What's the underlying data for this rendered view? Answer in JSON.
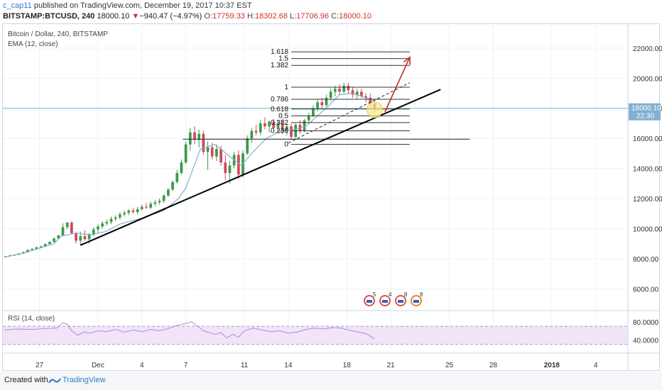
{
  "header": {
    "user": "c_cap11",
    "published_text": "published on TradingView.com, December 19, 2017 10:37 EST",
    "symbol": "BITSTAMP:BTCUSD, 240",
    "last": "18000.10",
    "change_arrow": "▼",
    "change": "−940.47 (−4.97%)",
    "o_label": "O:",
    "o_value": "17759.33",
    "h_label": "H:",
    "h_value": "18302.68",
    "l_label": "L:",
    "l_value": "17706.96",
    "c_label": "C:",
    "c_value": "18000.10"
  },
  "legend": {
    "title": "Bitcoin / Dollar, 240, BITSTAMP",
    "ema": "EMA (12, close)",
    "rsi": "RSI (14, close)"
  },
  "footer": {
    "created": "Created with",
    "brand": "TradingView"
  },
  "colors": {
    "up": "#3c9a48",
    "down": "#d0485c",
    "ema": "#7fb2cf",
    "trend": "#000000",
    "arrow": "#c62828",
    "rsi_line": "#b08acb",
    "rsi_band": "#f1e4f9",
    "price_marker": "#7fb2cf",
    "highlight": "#f7e98a"
  },
  "chart_data": {
    "type": "candlestick",
    "price_axis": {
      "ticks": [
        6000,
        8000,
        10000,
        12000,
        14000,
        16000,
        18000,
        20000,
        22000
      ],
      "tick_labels": [
        "6000.00",
        "8000.00",
        "10000.00",
        "12000.00",
        "14000.00",
        "16000.00",
        "18000.00",
        "20000.00",
        "22000.00"
      ],
      "range": [
        4650,
        23500
      ]
    },
    "time_axis": {
      "labels": [
        "27",
        "Dec",
        "4",
        "7",
        "11",
        "14",
        "18",
        "21",
        "25",
        "28",
        "2018",
        "4"
      ],
      "label_days": [
        -4,
        0,
        3,
        6,
        10,
        13,
        17,
        20,
        24,
        27,
        31,
        34
      ],
      "range_days": [
        -6.5,
        36.2
      ]
    },
    "last_price": {
      "value": "18000.10",
      "countdown": "22:30"
    },
    "ema": {
      "name": "EMA (12, close)",
      "points": [
        [
          -6.4,
          8100
        ],
        [
          -5,
          8400
        ],
        [
          -3,
          9000
        ],
        [
          -2.5,
          9500
        ],
        [
          -1.5,
          9700
        ],
        [
          -0.5,
          9600
        ],
        [
          0.5,
          9800
        ],
        [
          1.5,
          10300
        ],
        [
          3,
          10700
        ],
        [
          4.5,
          11200
        ],
        [
          5.5,
          12000
        ],
        [
          6,
          12700
        ],
        [
          6.5,
          14000
        ],
        [
          7,
          15300
        ],
        [
          8,
          15600
        ],
        [
          9,
          14800
        ],
        [
          9.8,
          14200
        ],
        [
          10.5,
          15000
        ],
        [
          11.5,
          16000
        ],
        [
          12.5,
          16500
        ],
        [
          13.4,
          16600
        ],
        [
          14.2,
          16800
        ],
        [
          15,
          17500
        ],
        [
          15.8,
          18200
        ],
        [
          16.5,
          18900
        ],
        [
          17.3,
          19000
        ],
        [
          18,
          18800
        ],
        [
          18.8,
          18500
        ]
      ]
    },
    "candles": [
      [
        -6.3,
        8140,
        8190,
        8110,
        8170
      ],
      [
        -6.0,
        8170,
        8260,
        8150,
        8230
      ],
      [
        -5.7,
        8230,
        8300,
        8190,
        8270
      ],
      [
        -5.4,
        8270,
        8380,
        8240,
        8350
      ],
      [
        -5.1,
        8350,
        8490,
        8320,
        8440
      ],
      [
        -4.8,
        8440,
        8620,
        8400,
        8580
      ],
      [
        -4.5,
        8580,
        8700,
        8520,
        8650
      ],
      [
        -4.2,
        8650,
        8820,
        8600,
        8760
      ],
      [
        -3.9,
        8760,
        8880,
        8700,
        8820
      ],
      [
        -3.6,
        8820,
        9020,
        8780,
        8980
      ],
      [
        -3.3,
        8980,
        9180,
        8920,
        9120
      ],
      [
        -3.0,
        9120,
        9400,
        9080,
        9350
      ],
      [
        -2.7,
        9350,
        9600,
        9300,
        9550
      ],
      [
        -2.4,
        9550,
        10350,
        9500,
        10100
      ],
      [
        -2.1,
        10100,
        10450,
        9950,
        10400
      ],
      [
        -1.8,
        10400,
        10500,
        9600,
        9700
      ],
      [
        -1.5,
        9700,
        9800,
        9000,
        9200
      ],
      [
        -1.2,
        9200,
        9800,
        8900,
        9500
      ],
      [
        -0.9,
        9500,
        9900,
        9200,
        9300
      ],
      [
        -0.6,
        9300,
        9700,
        9000,
        9600
      ],
      [
        -0.3,
        9600,
        10100,
        9500,
        9950
      ],
      [
        0.0,
        9950,
        10300,
        9700,
        10150
      ],
      [
        0.3,
        10150,
        10500,
        10000,
        10350
      ],
      [
        0.6,
        10350,
        10600,
        10200,
        10450
      ],
      [
        0.9,
        10450,
        10800,
        10300,
        10650
      ],
      [
        1.2,
        10650,
        10900,
        10500,
        10750
      ],
      [
        1.5,
        10750,
        11100,
        10600,
        10950
      ],
      [
        1.8,
        10950,
        11200,
        10800,
        11050
      ],
      [
        2.1,
        11050,
        11300,
        10900,
        11200
      ],
      [
        2.4,
        11200,
        11400,
        11000,
        11100
      ],
      [
        2.7,
        11100,
        11450,
        10950,
        11300
      ],
      [
        3.0,
        11300,
        11600,
        11200,
        11450
      ],
      [
        3.3,
        11450,
        11700,
        11300,
        11400
      ],
      [
        3.6,
        11400,
        11800,
        11300,
        11650
      ],
      [
        3.9,
        11650,
        11900,
        11500,
        11750
      ],
      [
        4.2,
        11750,
        12000,
        11600,
        11850
      ],
      [
        4.5,
        11850,
        12300,
        11700,
        12200
      ],
      [
        4.8,
        12200,
        12700,
        12100,
        12600
      ],
      [
        5.1,
        12600,
        13200,
        12500,
        13100
      ],
      [
        5.4,
        13100,
        13900,
        13000,
        13700
      ],
      [
        5.7,
        13700,
        14600,
        13600,
        14400
      ],
      [
        6.0,
        14400,
        15800,
        14300,
        15600
      ],
      [
        6.3,
        15600,
        16700,
        15200,
        16400
      ],
      [
        6.6,
        16400,
        16800,
        15600,
        15900
      ],
      [
        6.9,
        15900,
        16600,
        15400,
        16300
      ],
      [
        7.2,
        16300,
        16500,
        14900,
        15100
      ],
      [
        7.5,
        15100,
        15800,
        13900,
        15400
      ],
      [
        7.8,
        15400,
        15700,
        14600,
        14800
      ],
      [
        8.1,
        14800,
        15600,
        14500,
        15300
      ],
      [
        8.4,
        15300,
        15500,
        14200,
        14400
      ],
      [
        8.7,
        14400,
        14900,
        13200,
        13700
      ],
      [
        9.0,
        13700,
        14500,
        13000,
        14200
      ],
      [
        9.3,
        14200,
        15100,
        14000,
        14900
      ],
      [
        9.6,
        14900,
        15200,
        13300,
        13600
      ],
      [
        9.9,
        13600,
        15200,
        13400,
        15000
      ],
      [
        10.2,
        15000,
        16200,
        14900,
        16000
      ],
      [
        10.5,
        16000,
        16700,
        15700,
        16500
      ],
      [
        10.8,
        16500,
        16900,
        16200,
        16400
      ],
      [
        11.1,
        16400,
        17200,
        16200,
        17000
      ],
      [
        11.4,
        17000,
        17400,
        16600,
        16800
      ],
      [
        11.7,
        16800,
        17200,
        16400,
        17100
      ],
      [
        12.0,
        17100,
        17300,
        16600,
        16700
      ],
      [
        12.3,
        16700,
        17200,
        16400,
        17000
      ],
      [
        12.6,
        17000,
        17300,
        16300,
        16500
      ],
      [
        12.9,
        16500,
        17000,
        16200,
        16800
      ],
      [
        13.2,
        16800,
        17000,
        15900,
        16100
      ],
      [
        13.5,
        16100,
        17000,
        16000,
        16900
      ],
      [
        13.8,
        16900,
        17200,
        16300,
        16500
      ],
      [
        14.1,
        16500,
        17300,
        16400,
        17200
      ],
      [
        14.4,
        17200,
        17700,
        17000,
        17500
      ],
      [
        14.7,
        17500,
        18200,
        17400,
        18000
      ],
      [
        15.0,
        18000,
        18600,
        17800,
        18400
      ],
      [
        15.3,
        18400,
        18700,
        18000,
        18200
      ],
      [
        15.6,
        18200,
        18900,
        18100,
        18700
      ],
      [
        15.9,
        18700,
        19300,
        18500,
        19100
      ],
      [
        16.2,
        19100,
        19500,
        18800,
        19300
      ],
      [
        16.5,
        19300,
        19600,
        18900,
        19100
      ],
      [
        16.8,
        19100,
        19700,
        19000,
        19500
      ],
      [
        17.1,
        19500,
        19700,
        19000,
        19200
      ],
      [
        17.4,
        19200,
        19400,
        18700,
        18900
      ],
      [
        17.7,
        18900,
        19300,
        18600,
        19100
      ],
      [
        18.0,
        19100,
        19300,
        18700,
        18800
      ],
      [
        18.3,
        18800,
        19000,
        18400,
        18700
      ],
      [
        18.6,
        18700,
        19000,
        18100,
        18300
      ],
      [
        18.9,
        18300,
        18500,
        17700,
        18000
      ]
    ],
    "fibonacci": {
      "levels": [
        0,
        0.236,
        0.382,
        0.5,
        0.618,
        0.786,
        1,
        1.382,
        1.5,
        1.618
      ],
      "labels": [
        "0",
        "0.236",
        "0.382",
        "0.5",
        "0.618",
        "0.786",
        "1",
        "1.382",
        "1.5",
        "1.618"
      ],
      "prices": [
        15600,
        16500,
        17050,
        17500,
        17950,
        18600,
        19400,
        20850,
        21300,
        21750
      ],
      "x_days": [
        13.2,
        21.3
      ]
    },
    "drawings": {
      "trendline": {
        "from": [
          -1.2,
          8900
        ],
        "to": [
          23.4,
          19250
        ]
      },
      "dashed_line": {
        "from": [
          13.0,
          15700
        ],
        "to": [
          21.3,
          19700
        ]
      },
      "horizontal_line": {
        "from": [
          5.8,
          15950
        ],
        "to": [
          25.4,
          15950
        ]
      },
      "arrow": {
        "from": [
          19.6,
          17750
        ],
        "to": [
          21.3,
          21400
        ]
      },
      "highlight_circle": {
        "center": [
          18.9,
          17900
        ]
      }
    },
    "event_markers": [
      "5",
      "4",
      "8",
      "8"
    ],
    "rsi": {
      "name": "RSI (14, close)",
      "ticks": [
        40,
        80
      ],
      "tick_labels": [
        "40.0000",
        "80.0000"
      ],
      "range": [
        20,
        100
      ],
      "band": [
        30,
        70
      ],
      "points": [
        [
          -6.4,
          62
        ],
        [
          -5.5,
          64
        ],
        [
          -4.5,
          63
        ],
        [
          -3.5,
          65
        ],
        [
          -2.8,
          66
        ],
        [
          -2.4,
          78
        ],
        [
          -2.1,
          74
        ],
        [
          -1.8,
          60
        ],
        [
          -1.4,
          50
        ],
        [
          -1,
          57
        ],
        [
          -0.5,
          55
        ],
        [
          0,
          60
        ],
        [
          0.6,
          58
        ],
        [
          1.2,
          63
        ],
        [
          1.8,
          57
        ],
        [
          2.4,
          62
        ],
        [
          3,
          58
        ],
        [
          3.6,
          63
        ],
        [
          4.2,
          60
        ],
        [
          4.8,
          65
        ],
        [
          5.4,
          72
        ],
        [
          6,
          76
        ],
        [
          6.4,
          80
        ],
        [
          6.8,
          70
        ],
        [
          7.2,
          60
        ],
        [
          7.6,
          56
        ],
        [
          8,
          52
        ],
        [
          8.4,
          56
        ],
        [
          8.8,
          44
        ],
        [
          9.2,
          52
        ],
        [
          9.6,
          46
        ],
        [
          10,
          60
        ],
        [
          10.6,
          66
        ],
        [
          11.2,
          62
        ],
        [
          11.8,
          58
        ],
        [
          12.4,
          60
        ],
        [
          13,
          55
        ],
        [
          13.6,
          57
        ],
        [
          14.2,
          63
        ],
        [
          14.8,
          66
        ],
        [
          15.4,
          64
        ],
        [
          16,
          67
        ],
        [
          16.6,
          66
        ],
        [
          17.2,
          61
        ],
        [
          17.8,
          57
        ],
        [
          18.3,
          54
        ],
        [
          18.9,
          42
        ]
      ]
    }
  }
}
